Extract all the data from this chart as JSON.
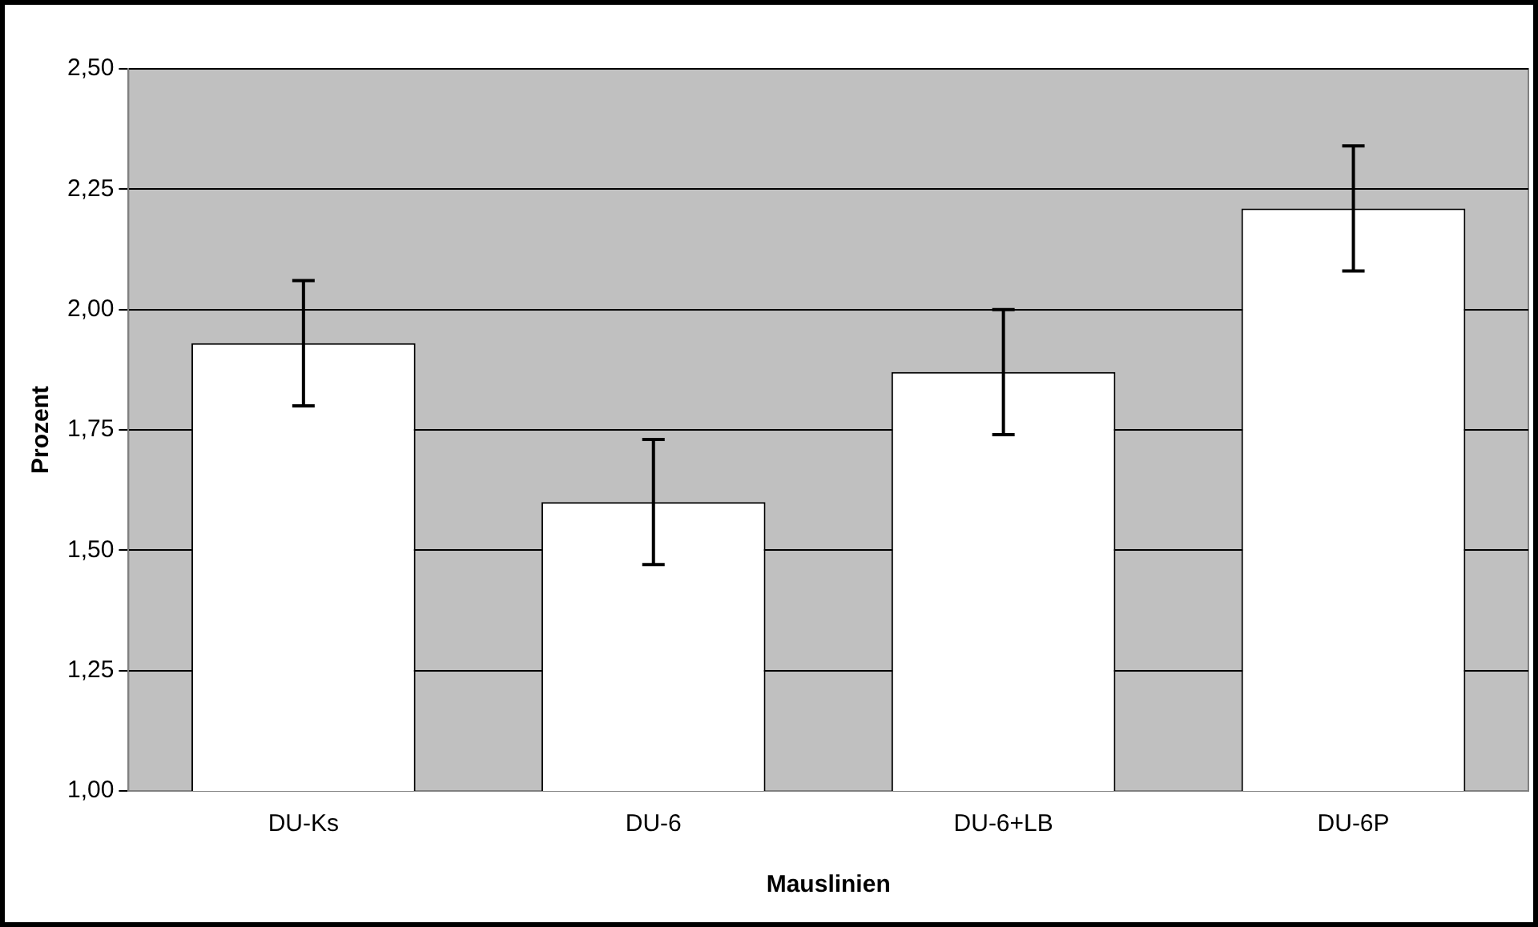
{
  "chart_data": {
    "type": "bar",
    "xlabel": "Mauslinien",
    "ylabel": "Prozent",
    "categories": [
      "DU-Ks",
      "DU-6",
      "DU-6+LB",
      "DU-6P"
    ],
    "values": [
      1.93,
      1.6,
      1.87,
      2.21
    ],
    "errors": [
      0.13,
      0.13,
      0.13,
      0.13
    ],
    "color": "#ffffff",
    "ylim": [
      1.0,
      2.5
    ],
    "yticks": [
      {
        "value": 1.0,
        "label": "1,00"
      },
      {
        "value": 1.25,
        "label": "1,25"
      },
      {
        "value": 1.5,
        "label": "1,50"
      },
      {
        "value": 1.75,
        "label": "1,75"
      },
      {
        "value": 2.0,
        "label": "2,00"
      },
      {
        "value": 2.25,
        "label": "2,25"
      },
      {
        "value": 2.5,
        "label": "2,50"
      }
    ],
    "grid": "y",
    "legend": false
  }
}
